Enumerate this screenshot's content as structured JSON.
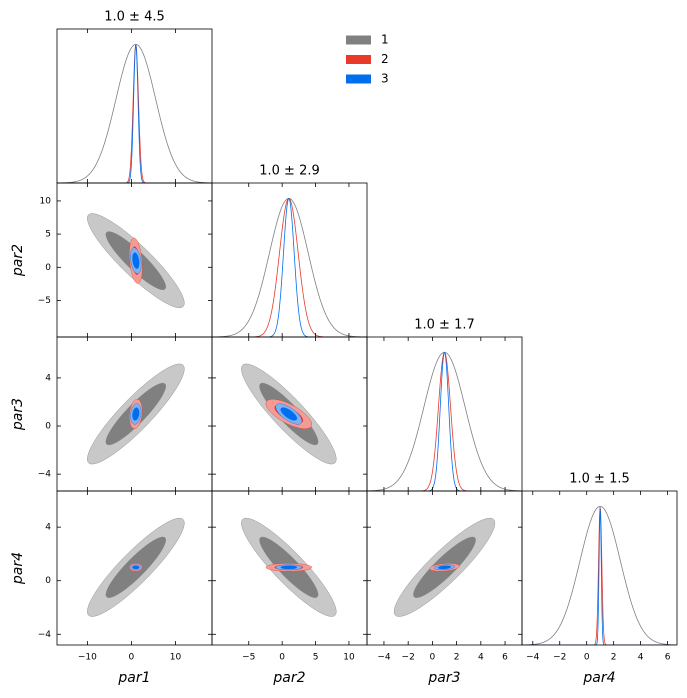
{
  "chart_data": {
    "type": "corner",
    "parameters": [
      "par1",
      "par2",
      "par3",
      "par4"
    ],
    "titles": [
      "1.0 ± 4.5",
      "1.0 ± 2.9",
      "1.0 ± 1.7",
      "1.0 ± 1.5"
    ],
    "limits": [
      [
        -16.9,
        18.3
      ],
      [
        -10.5,
        12.7
      ],
      [
        -5.4,
        7.4
      ],
      [
        -4.8,
        6.7
      ]
    ],
    "xticks": [
      [
        {
          "value": -10,
          "label": "−10"
        },
        0,
        10
      ],
      [
        {
          "value": -5,
          "label": "−5"
        },
        0,
        5,
        10
      ],
      [
        {
          "value": -4,
          "label": "−4"
        },
        {
          "value": -2,
          "label": "−2"
        },
        0,
        2,
        4,
        6
      ],
      [
        {
          "value": -4,
          "label": "−4"
        },
        {
          "value": -2,
          "label": "−2"
        },
        0,
        2,
        4,
        6
      ]
    ],
    "yticks": [
      [
        {
          "value": -5,
          "label": "−5"
        },
        0,
        5,
        10
      ],
      [
        {
          "value": -4,
          "label": "−4"
        },
        0,
        4
      ],
      [
        {
          "value": -4,
          "label": "−4"
        },
        0,
        4
      ]
    ],
    "contour_levels": [
      0.68,
      0.95
    ],
    "legend": "upper center",
    "series": [
      {
        "name": "1",
        "color": "#808080",
        "fills": [
          "#c8c8c8",
          "#808080"
        ],
        "means": [
          1.0,
          1.0,
          1.0,
          1.0
        ],
        "sds": [
          4.5,
          2.9,
          1.7,
          1.5
        ],
        "corr": [
          [
            1,
            -0.9,
            0.9,
            0.9
          ],
          [
            -0.9,
            1,
            -0.9,
            -0.9
          ],
          [
            0.9,
            -0.9,
            1,
            0.9
          ],
          [
            0.9,
            -0.9,
            0.9,
            1
          ]
        ]
      },
      {
        "name": "2",
        "color": "#e8392b",
        "fills": [
          "#f49c93",
          "#e8392b"
        ],
        "means": [
          1.0,
          1.0,
          1.0,
          1.0
        ],
        "sds": [
          0.6,
          1.4,
          0.5,
          0.12
        ],
        "corr": [
          [
            1,
            -0.3,
            0.2,
            0
          ],
          [
            -0.3,
            1,
            -0.7,
            0
          ],
          [
            0.2,
            -0.7,
            1,
            0.3
          ],
          [
            0,
            0,
            0.3,
            1
          ]
        ]
      },
      {
        "name": "3",
        "color": "#006fed",
        "fills": [
          "#7fb0f2",
          "#006fed"
        ],
        "means": [
          1.0,
          1.0,
          1.0,
          1.0
        ],
        "sds": [
          0.5,
          0.8,
          0.35,
          0.08
        ],
        "corr": [
          [
            1,
            -0.3,
            0.2,
            0
          ],
          [
            -0.3,
            1,
            -0.7,
            0
          ],
          [
            0.2,
            -0.7,
            1,
            0.3
          ],
          [
            0,
            0,
            0.3,
            1
          ]
        ]
      }
    ]
  }
}
